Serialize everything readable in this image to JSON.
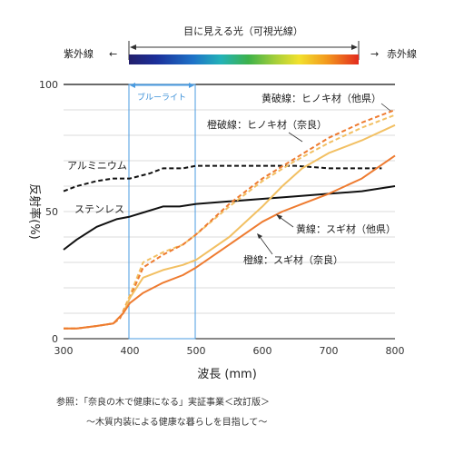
{
  "chart_data": {
    "type": "line",
    "xlabel": "波長 (mm)",
    "ylabel": "反射率(%)",
    "xlim": [
      300,
      800
    ],
    "ylim": [
      0,
      100
    ],
    "x_ticks": [
      "300",
      "400",
      "500",
      "600",
      "700",
      "800"
    ],
    "y_ticks": [
      "0",
      "50",
      "100"
    ],
    "visible_band": {
      "label": "目に見える光（可視光線）",
      "range": [
        400,
        750
      ]
    },
    "uv_label": "紫外線",
    "uv_arrow": "←",
    "ir_label": "赤外線",
    "ir_arrow": "→",
    "blue_light": {
      "label": "ブルーライト",
      "range": [
        400,
        500
      ]
    },
    "series": [
      {
        "name": "アルミニウム",
        "color": "#111111",
        "style": "dashed",
        "x": [
          300,
          320,
          350,
          375,
          400,
          430,
          450,
          480,
          500,
          520,
          550,
          600,
          650,
          700,
          750,
          780
        ],
        "y": [
          58,
          60,
          62,
          63,
          63,
          65,
          67,
          67,
          68,
          68,
          68,
          68,
          68,
          67,
          67,
          67
        ]
      },
      {
        "name": "ステンレス",
        "color": "#111111",
        "style": "solid",
        "x": [
          300,
          320,
          350,
          380,
          400,
          425,
          450,
          475,
          500,
          550,
          600,
          650,
          700,
          750,
          800
        ],
        "y": [
          35,
          39,
          44,
          47,
          48,
          50,
          52,
          52,
          53,
          54,
          55,
          56,
          57,
          58,
          60
        ]
      },
      {
        "name": "黄破線：ヒノキ材（他県）",
        "color": "#f2c063",
        "style": "dashed",
        "x": [
          300,
          320,
          350,
          375,
          385,
          400,
          420,
          450,
          480,
          500,
          550,
          600,
          650,
          700,
          750,
          800
        ],
        "y": [
          4,
          4,
          5,
          6,
          8,
          17,
          30,
          34,
          37,
          41,
          52,
          62,
          70,
          77,
          83,
          88
        ]
      },
      {
        "name": "橙破線：ヒノキ材（奈良）",
        "color": "#ee7b30",
        "style": "dashed",
        "x": [
          300,
          320,
          350,
          375,
          385,
          400,
          420,
          450,
          480,
          500,
          550,
          600,
          650,
          700,
          750,
          800
        ],
        "y": [
          4,
          4,
          5,
          6,
          8,
          16,
          28,
          33,
          37,
          41,
          53,
          63,
          71,
          79,
          85,
          90
        ]
      },
      {
        "name": "黄線：スギ材（他県）",
        "color": "#f2c063",
        "style": "solid",
        "x": [
          300,
          320,
          350,
          375,
          390,
          400,
          420,
          450,
          480,
          500,
          550,
          600,
          630,
          660,
          700,
          750,
          800
        ],
        "y": [
          4,
          4,
          5,
          6,
          10,
          16,
          24,
          27,
          29,
          31,
          40,
          52,
          60,
          67,
          73,
          78,
          84
        ]
      },
      {
        "name": "橙線：スギ材（奈良）",
        "color": "#ee7b30",
        "style": "solid",
        "x": [
          300,
          320,
          350,
          375,
          390,
          400,
          420,
          450,
          480,
          500,
          550,
          600,
          630,
          660,
          700,
          750,
          800
        ],
        "y": [
          4,
          4,
          5,
          6,
          10,
          14,
          18,
          22,
          25,
          28,
          37,
          46,
          50,
          53,
          57,
          63,
          72
        ]
      }
    ],
    "source_line1": "参照：「奈良の木で健康になる」実証事業＜改訂版＞",
    "source_line2": "〜木質内装による健康な暮らしを目指して〜"
  }
}
